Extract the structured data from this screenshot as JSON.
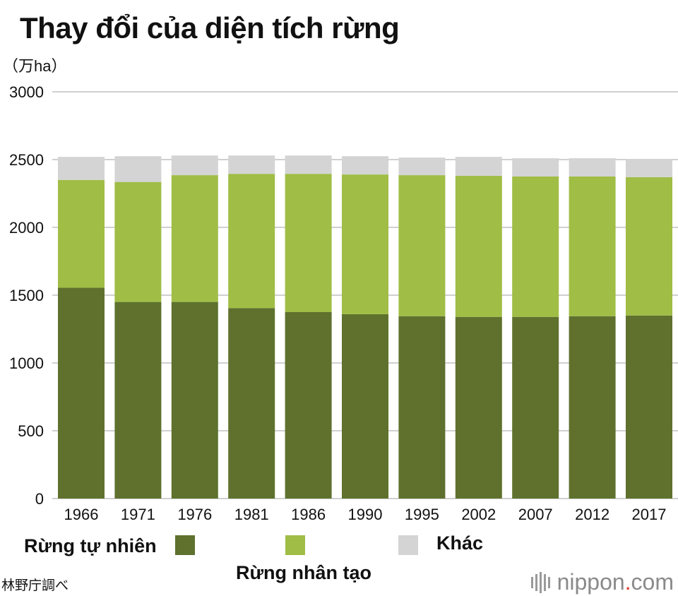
{
  "title": "Thay đổi của diện tích rừng",
  "unit_label": "（万ha）",
  "legend": [
    {
      "label": "Rừng tự nhiên",
      "color": "#5f712d"
    },
    {
      "label": "Rừng nhân tạo",
      "color": "#a0bd45"
    },
    {
      "label": "Khác",
      "color": "#d4d4d4"
    }
  ],
  "source": "林野庁調べ",
  "brand": {
    "name": "nippon",
    "dot": ".",
    "suffix": "com"
  },
  "chart_data": {
    "type": "bar",
    "stacked": true,
    "categories": [
      "1966",
      "1971",
      "1976",
      "1981",
      "1986",
      "1990",
      "1995",
      "2002",
      "2007",
      "2012",
      "2017"
    ],
    "series": [
      {
        "name": "Rừng tự nhiên",
        "color": "#5f712d",
        "values": [
          1555,
          1450,
          1450,
          1405,
          1375,
          1360,
          1345,
          1340,
          1340,
          1345,
          1350
        ]
      },
      {
        "name": "Rừng nhân tạo",
        "color": "#a0bd45",
        "values": [
          795,
          885,
          935,
          990,
          1020,
          1030,
          1040,
          1040,
          1035,
          1030,
          1020
        ]
      },
      {
        "name": "Khác",
        "color": "#d4d4d4",
        "values": [
          170,
          190,
          145,
          135,
          135,
          135,
          130,
          140,
          135,
          135,
          135
        ]
      }
    ],
    "ylim": [
      0,
      3000
    ],
    "yticks": [
      0,
      500,
      1000,
      1500,
      2000,
      2500,
      3000
    ],
    "grid": true,
    "legend_position": "bottom"
  }
}
